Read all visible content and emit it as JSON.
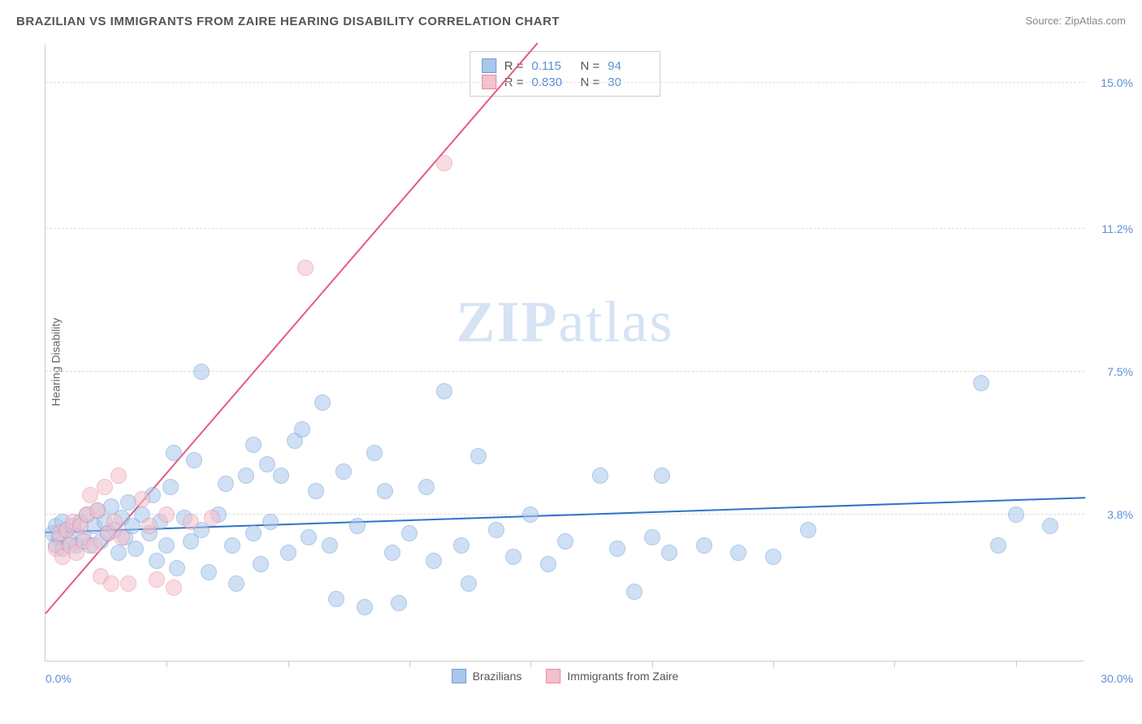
{
  "title": "BRAZILIAN VS IMMIGRANTS FROM ZAIRE HEARING DISABILITY CORRELATION CHART",
  "source": "Source: ZipAtlas.com",
  "ylabel": "Hearing Disability",
  "watermark_bold": "ZIP",
  "watermark_light": "atlas",
  "chart": {
    "type": "scatter",
    "background_color": "#ffffff",
    "grid_color": "#dddddd",
    "axis_color": "#cccccc",
    "tick_label_color": "#5b8fd6",
    "xlim": [
      0,
      30
    ],
    "ylim": [
      0,
      16
    ],
    "xticks": [
      3.5,
      7.0,
      10.5,
      14.0,
      17.5,
      21.0,
      24.5,
      28.0
    ],
    "yticks": [
      3.8,
      7.5,
      11.2,
      15.0
    ],
    "xmin_label": "0.0%",
    "xmax_label": "30.0%",
    "ytick_labels": [
      "3.8%",
      "7.5%",
      "11.2%",
      "15.0%"
    ],
    "point_radius": 10,
    "point_opacity": 0.55,
    "series": [
      {
        "name": "Brazilians",
        "fill_color": "#a9c6ec",
        "stroke_color": "#6d9fd9",
        "line_color": "#2e73c9",
        "R": "0.115",
        "N": "94",
        "trend": {
          "x1": 0,
          "y1": 3.3,
          "x2": 30,
          "y2": 4.2
        },
        "points": [
          [
            0.2,
            3.3
          ],
          [
            0.3,
            3.0
          ],
          [
            0.3,
            3.5
          ],
          [
            0.4,
            3.2
          ],
          [
            0.5,
            3.6
          ],
          [
            0.5,
            2.9
          ],
          [
            0.6,
            3.4
          ],
          [
            0.7,
            3.1
          ],
          [
            0.8,
            3.5
          ],
          [
            0.9,
            3.0
          ],
          [
            1.0,
            3.6
          ],
          [
            1.1,
            3.2
          ],
          [
            1.2,
            3.8
          ],
          [
            1.3,
            3.0
          ],
          [
            1.4,
            3.5
          ],
          [
            1.5,
            3.9
          ],
          [
            1.6,
            3.1
          ],
          [
            1.7,
            3.6
          ],
          [
            1.8,
            3.3
          ],
          [
            1.9,
            4.0
          ],
          [
            2.0,
            3.4
          ],
          [
            2.1,
            2.8
          ],
          [
            2.2,
            3.7
          ],
          [
            2.3,
            3.2
          ],
          [
            2.4,
            4.1
          ],
          [
            2.5,
            3.5
          ],
          [
            2.6,
            2.9
          ],
          [
            2.8,
            3.8
          ],
          [
            3.0,
            3.3
          ],
          [
            3.1,
            4.3
          ],
          [
            3.2,
            2.6
          ],
          [
            3.3,
            3.6
          ],
          [
            3.5,
            3.0
          ],
          [
            3.6,
            4.5
          ],
          [
            3.7,
            5.4
          ],
          [
            3.8,
            2.4
          ],
          [
            4.0,
            3.7
          ],
          [
            4.2,
            3.1
          ],
          [
            4.3,
            5.2
          ],
          [
            4.5,
            3.4
          ],
          [
            4.5,
            7.5
          ],
          [
            4.7,
            2.3
          ],
          [
            5.0,
            3.8
          ],
          [
            5.2,
            4.6
          ],
          [
            5.4,
            3.0
          ],
          [
            5.5,
            2.0
          ],
          [
            5.8,
            4.8
          ],
          [
            6.0,
            3.3
          ],
          [
            6.2,
            2.5
          ],
          [
            6.4,
            5.1
          ],
          [
            6.5,
            3.6
          ],
          [
            6.8,
            4.8
          ],
          [
            7.0,
            2.8
          ],
          [
            7.2,
            5.7
          ],
          [
            7.4,
            6.0
          ],
          [
            7.6,
            3.2
          ],
          [
            7.8,
            4.4
          ],
          [
            8.0,
            6.7
          ],
          [
            8.2,
            3.0
          ],
          [
            8.4,
            1.6
          ],
          [
            8.6,
            4.9
          ],
          [
            9.0,
            3.5
          ],
          [
            9.2,
            1.4
          ],
          [
            9.5,
            5.4
          ],
          [
            9.8,
            4.4
          ],
          [
            10.0,
            2.8
          ],
          [
            10.2,
            1.5
          ],
          [
            10.5,
            3.3
          ],
          [
            11.0,
            4.5
          ],
          [
            11.2,
            2.6
          ],
          [
            11.5,
            7.0
          ],
          [
            12.0,
            3.0
          ],
          [
            12.2,
            2.0
          ],
          [
            12.5,
            5.3
          ],
          [
            13.0,
            3.4
          ],
          [
            13.5,
            2.7
          ],
          [
            14.0,
            3.8
          ],
          [
            14.5,
            2.5
          ],
          [
            15.0,
            3.1
          ],
          [
            16.0,
            4.8
          ],
          [
            16.5,
            2.9
          ],
          [
            17.0,
            1.8
          ],
          [
            17.5,
            3.2
          ],
          [
            17.8,
            4.8
          ],
          [
            18.0,
            2.8
          ],
          [
            19.0,
            3.0
          ],
          [
            20.0,
            2.8
          ],
          [
            21.0,
            2.7
          ],
          [
            22.0,
            3.4
          ],
          [
            27.0,
            7.2
          ],
          [
            27.5,
            3.0
          ],
          [
            28.0,
            3.8
          ],
          [
            29.0,
            3.5
          ],
          [
            6.0,
            5.6
          ]
        ]
      },
      {
        "name": "Immigrants from Zaire",
        "fill_color": "#f4c0cb",
        "stroke_color": "#e88ba0",
        "line_color": "#e65a7e",
        "R": "0.830",
        "N": "30",
        "trend": {
          "x1": 0,
          "y1": 1.2,
          "x2": 14.2,
          "y2": 16.0
        },
        "points": [
          [
            0.3,
            2.9
          ],
          [
            0.4,
            3.3
          ],
          [
            0.5,
            2.7
          ],
          [
            0.6,
            3.4
          ],
          [
            0.7,
            3.0
          ],
          [
            0.8,
            3.6
          ],
          [
            0.9,
            2.8
          ],
          [
            1.0,
            3.5
          ],
          [
            1.1,
            3.1
          ],
          [
            1.2,
            3.8
          ],
          [
            1.3,
            4.3
          ],
          [
            1.4,
            3.0
          ],
          [
            1.5,
            3.9
          ],
          [
            1.6,
            2.2
          ],
          [
            1.7,
            4.5
          ],
          [
            1.8,
            3.3
          ],
          [
            1.9,
            2.0
          ],
          [
            2.0,
            3.6
          ],
          [
            2.1,
            4.8
          ],
          [
            2.2,
            3.2
          ],
          [
            2.4,
            2.0
          ],
          [
            2.8,
            4.2
          ],
          [
            3.0,
            3.5
          ],
          [
            3.2,
            2.1
          ],
          [
            3.5,
            3.8
          ],
          [
            3.7,
            1.9
          ],
          [
            4.2,
            3.6
          ],
          [
            4.8,
            3.7
          ],
          [
            7.5,
            10.2
          ],
          [
            11.5,
            12.9
          ]
        ]
      }
    ]
  },
  "stats_labels": {
    "R": "R  =",
    "N": "N  ="
  },
  "legend_labels": [
    "Brazilians",
    "Immigrants from Zaire"
  ]
}
